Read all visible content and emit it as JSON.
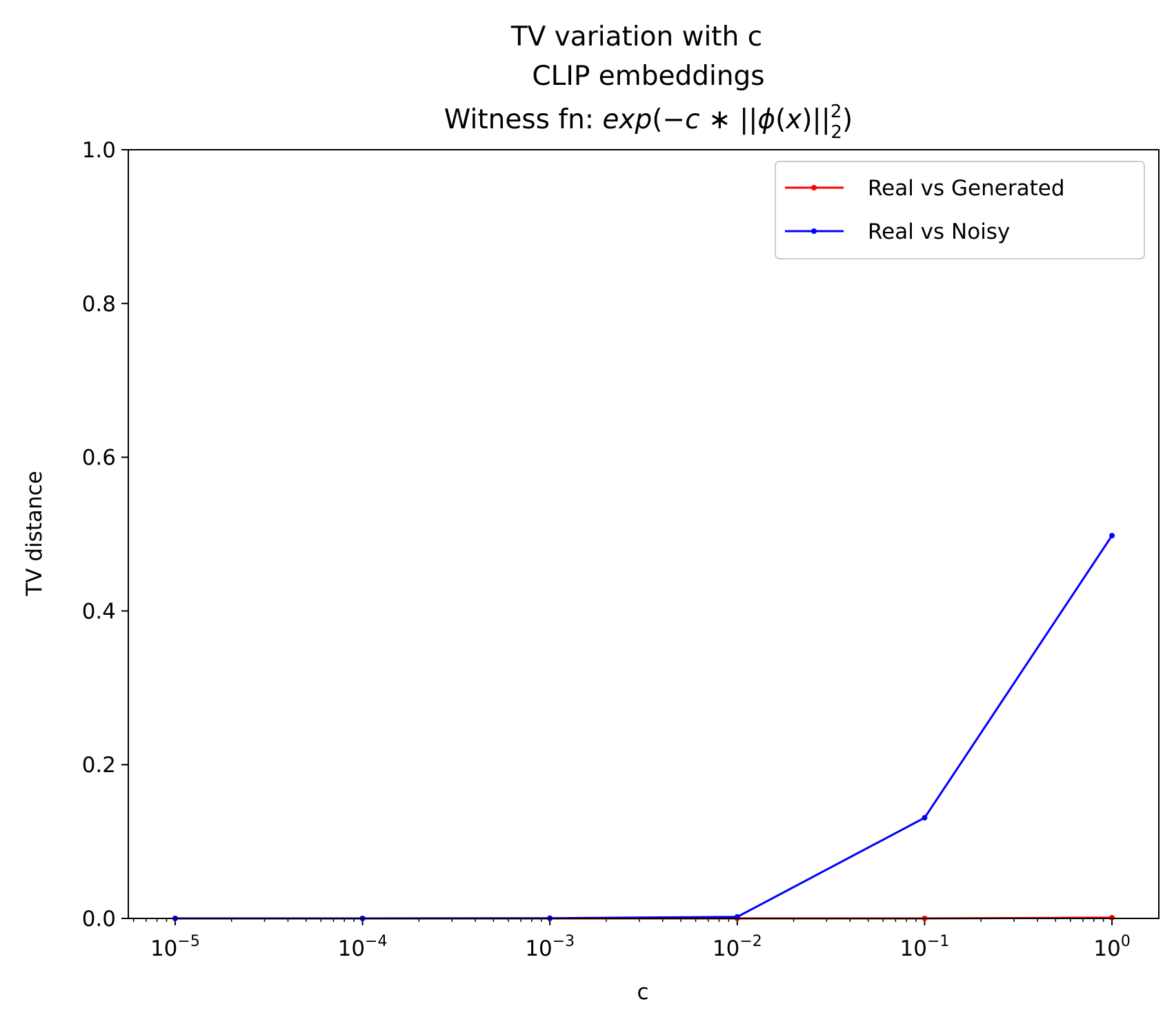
{
  "chart_data": {
    "type": "line",
    "title_lines": [
      "TV variation with c",
      "CLIP embeddings"
    ],
    "title_formula": {
      "prefix": "Witness fn: ",
      "exp": "exp",
      "open": "(−",
      "c": "c",
      "star": " ∗ ",
      "bars_open": "||",
      "phi": "ϕ",
      "x_open": "(",
      "x": "x",
      "x_close": ")",
      "bars_close": "||",
      "sup": "2",
      "sub": "2",
      "close": ")"
    },
    "xlabel": "c",
    "ylabel": "TV distance",
    "x_scale": "log",
    "x_ticks": [
      {
        "value": 1e-05,
        "base": "10",
        "exp": "−5"
      },
      {
        "value": 0.0001,
        "base": "10",
        "exp": "−4"
      },
      {
        "value": 0.001,
        "base": "10",
        "exp": "−3"
      },
      {
        "value": 0.01,
        "base": "10",
        "exp": "−2"
      },
      {
        "value": 0.1,
        "base": "10",
        "exp": "−1"
      },
      {
        "value": 1,
        "base": "10",
        "exp": "0"
      }
    ],
    "y_ticks": [
      "0.0",
      "0.2",
      "0.4",
      "0.6",
      "0.8",
      "1.0"
    ],
    "ylim": [
      0,
      1
    ],
    "x": [
      1e-05,
      0.0001,
      0.001,
      0.01,
      0.1,
      1
    ],
    "series": [
      {
        "name": "Real vs Generated",
        "color": "#ff0000",
        "values": [
          0.0,
          0.0,
          0.0,
          0.0,
          0.0,
          0.001
        ]
      },
      {
        "name": "Real vs Noisy",
        "color": "#0000ff",
        "values": [
          0.0,
          0.0,
          0.0003,
          0.002,
          0.131,
          0.498
        ]
      }
    ],
    "legend_position": "upper right",
    "grid": false
  }
}
